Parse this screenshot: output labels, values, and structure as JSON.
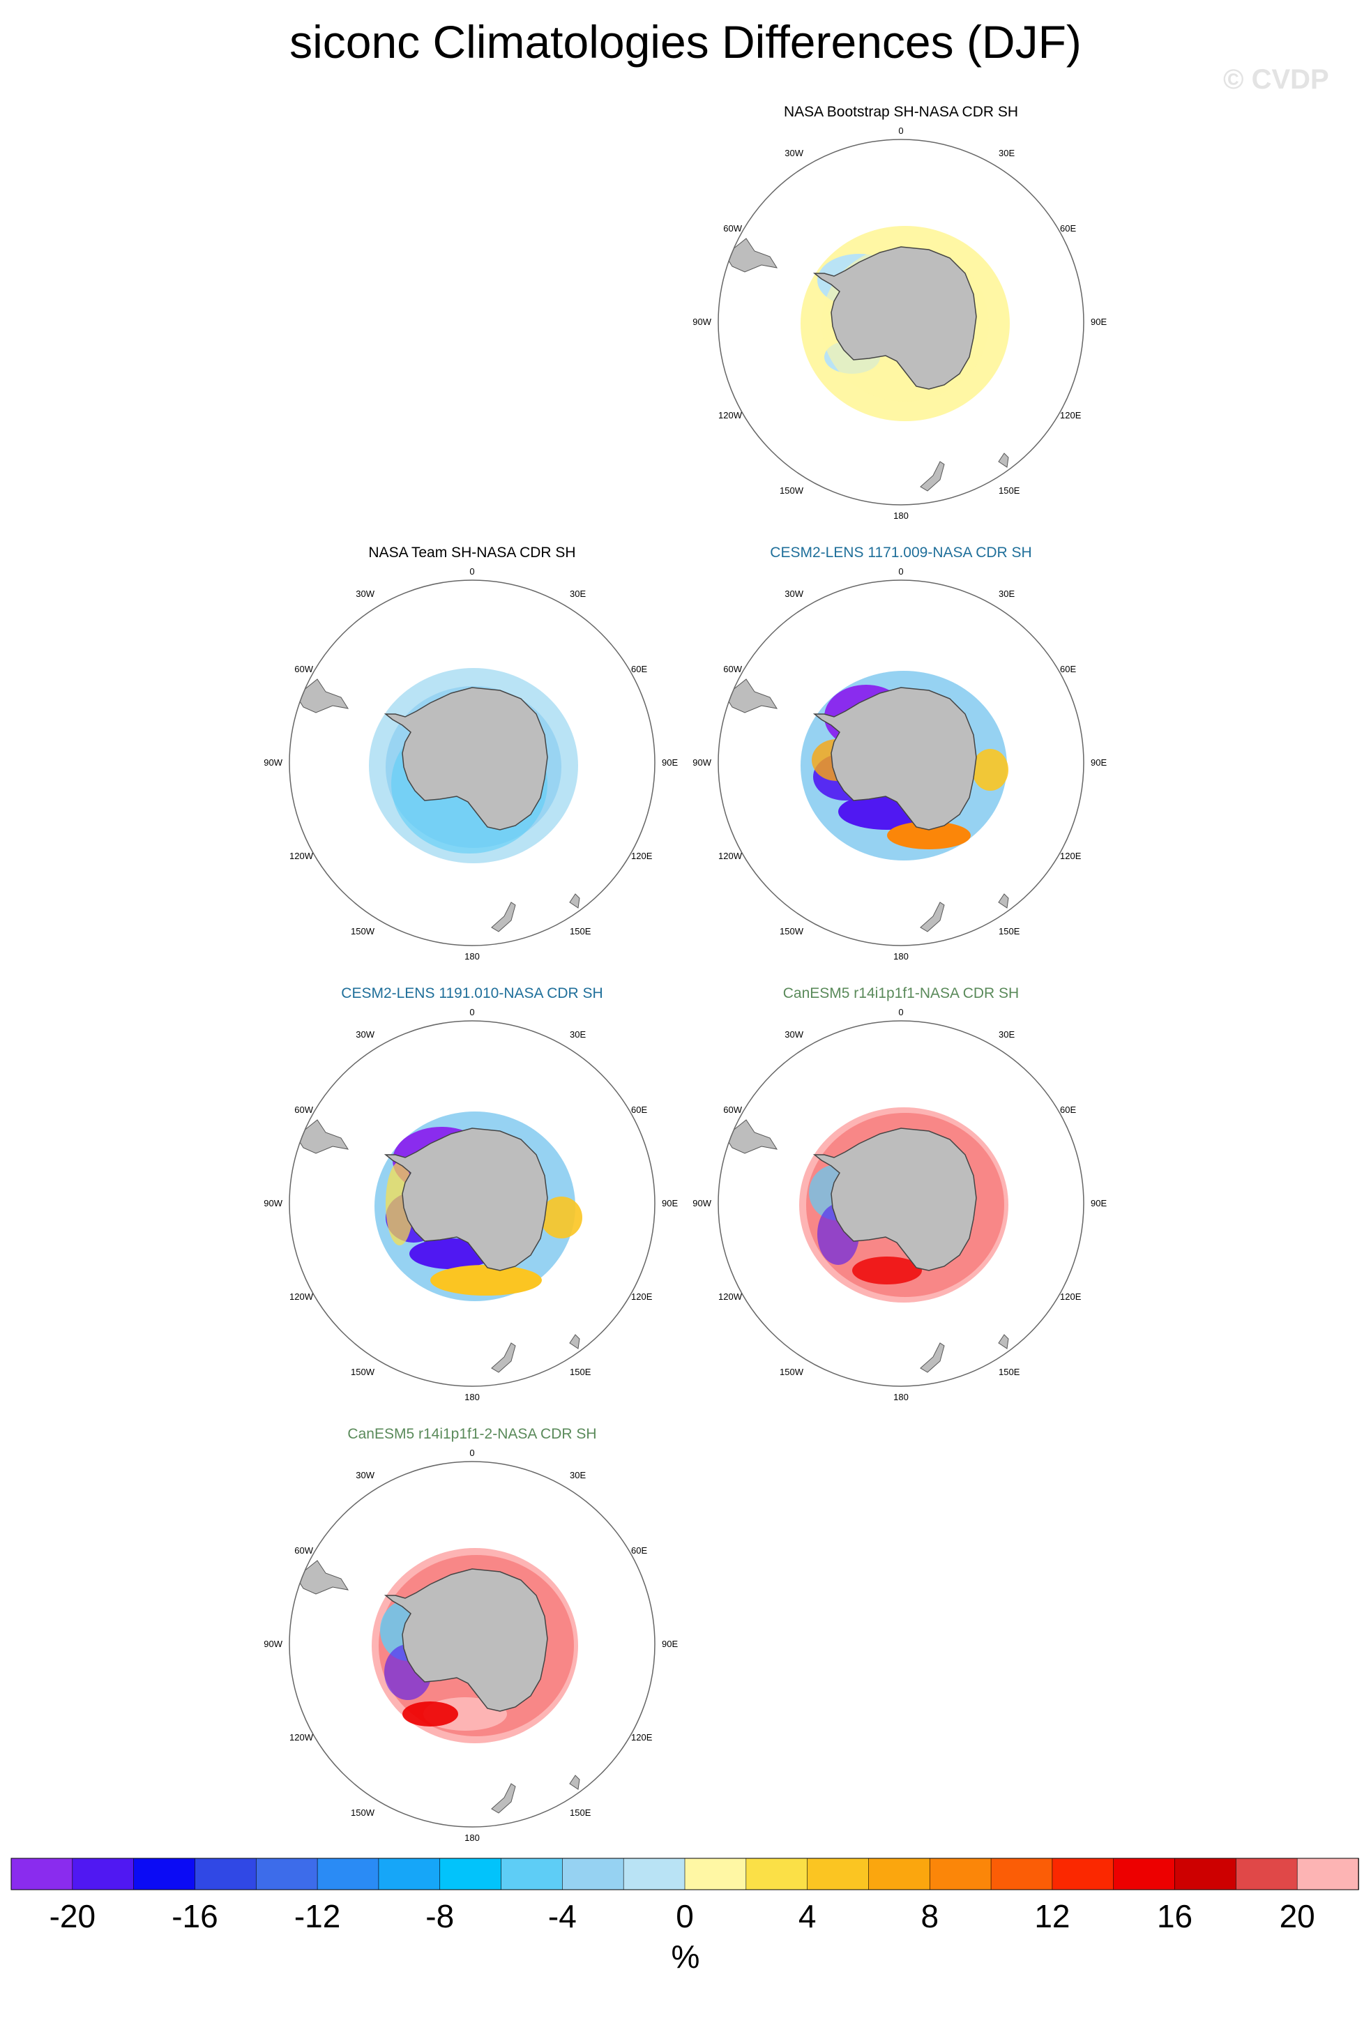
{
  "title": "siconc Climatologies Differences (DJF)",
  "watermark": "© CVDP",
  "colorbar": {
    "unit": "%",
    "tick_labels": [
      "-20",
      "-16",
      "-12",
      "-8",
      "-4",
      "0",
      "4",
      "8",
      "12",
      "16",
      "20"
    ],
    "colors": [
      "#8a2cee",
      "#5018f2",
      "#0b0bf5",
      "#3048e5",
      "#3d6cea",
      "#2a8bf5",
      "#16a6f8",
      "#02c3fb",
      "#5ecdf6",
      "#96d2f2",
      "#b9e3f5",
      "#fff7a4",
      "#fbe047",
      "#fbc522",
      "#fba60e",
      "#fb8609",
      "#fb5d06",
      "#fb2800",
      "#ed0000",
      "#cd0000",
      "#e04848",
      "#fdb4b4"
    ],
    "levels": [
      -20,
      -18,
      -16,
      -14,
      -12,
      -10,
      -8,
      -6,
      -4,
      -2,
      0,
      2,
      4,
      6,
      8,
      10,
      12,
      14,
      16,
      18,
      20
    ]
  },
  "map_labels": {
    "top": "0",
    "bottom": "180",
    "left": "90W",
    "right": "90E",
    "tl1": "30W",
    "tr1": "30E",
    "tl2": "60W",
    "tr2": "60E",
    "bl1": "120W",
    "br1": "120E",
    "bl2": "150W",
    "br2": "150E"
  },
  "panels": [
    {
      "title": "NASA Bootstrap SH-NASA CDR SH",
      "title_color": "#000000"
    },
    {
      "title": "NASA Team SH-NASA CDR SH",
      "title_color": "#000000"
    },
    {
      "title": "CESM2-LENS 1171.009-NASA CDR SH",
      "title_color": "#1f6f9a"
    },
    {
      "title": "CESM2-LENS 1191.010-NASA CDR SH",
      "title_color": "#1f6f9a"
    },
    {
      "title": "CanESM5 r14i1p1f1-NASA CDR SH",
      "title_color": "#5a8a5a"
    },
    {
      "title": "CanESM5 r14i1p1f1-2-NASA CDR SH",
      "title_color": "#5a8a5a"
    }
  ],
  "chart_data": {
    "type": "heatmap",
    "projection": "south polar stereographic",
    "variable": "siconc",
    "season": "DJF",
    "value_range": [
      -20,
      20
    ]
  }
}
